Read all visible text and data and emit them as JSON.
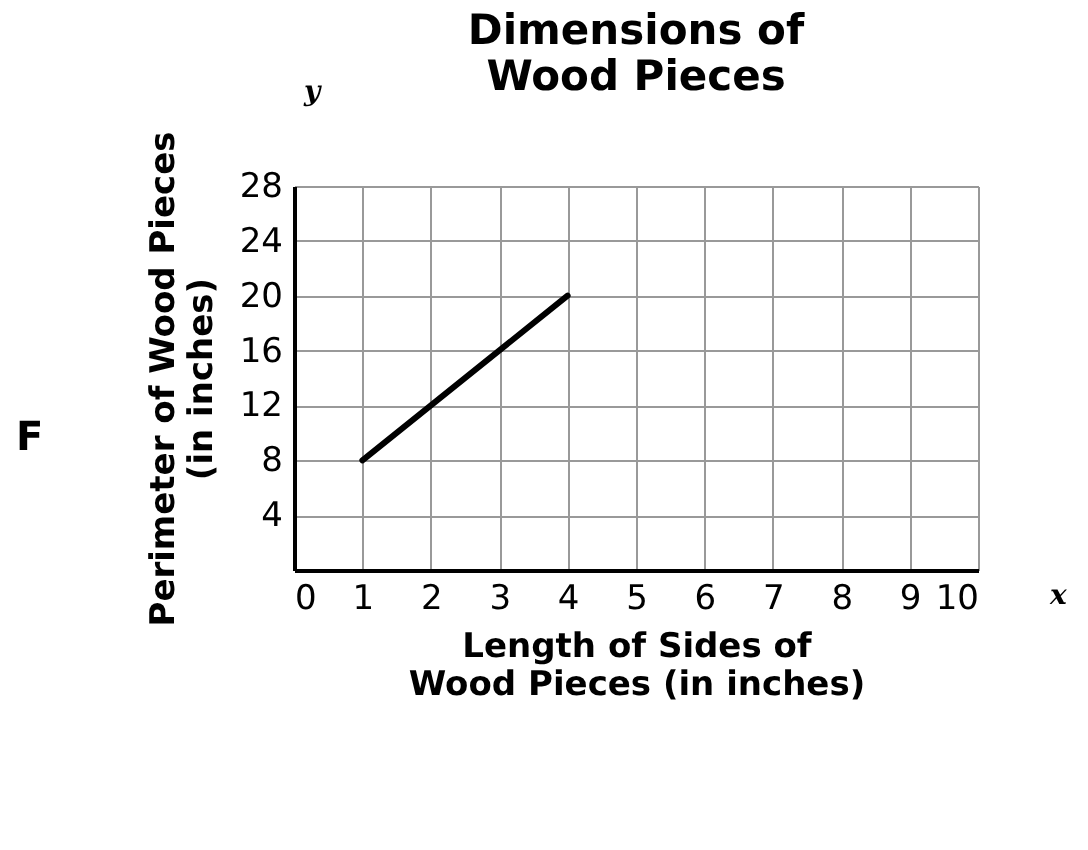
{
  "chart_data": {
    "type": "line",
    "title": "Dimensions of\nWood Pieces",
    "xlabel": "Length of Sides of\nWood Pieces (in inches)",
    "ylabel": "Perimeter of Wood Pieces\n(in inches)",
    "x": [
      1,
      4
    ],
    "series": [
      {
        "color": "#000000",
        "values": [
          8,
          20
        ]
      }
    ],
    "xlim": [
      0,
      10
    ],
    "xticks": [
      0,
      1,
      2,
      3,
      4,
      5,
      6,
      7,
      8,
      9,
      10
    ],
    "ylim": [
      0,
      28
    ],
    "yticks": [
      4,
      8,
      12,
      16,
      20,
      24,
      28
    ],
    "grid": true,
    "marker": "none",
    "line_style": "solid",
    "annotations": [
      "F",
      "y",
      "x"
    ]
  }
}
